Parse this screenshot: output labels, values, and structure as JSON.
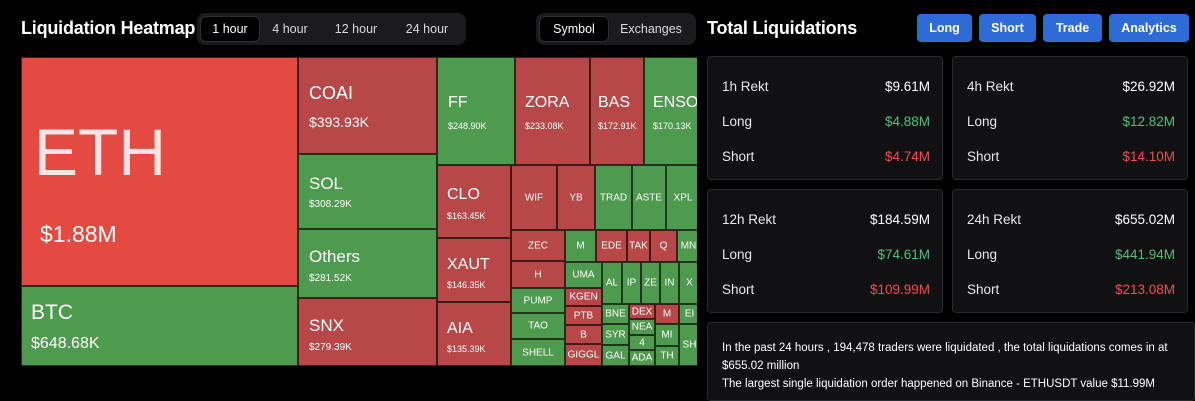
{
  "heatmap": {
    "title": "Liquidation Heatmap",
    "time_tabs": [
      "1 hour",
      "4 hour",
      "12 hour",
      "24 hour"
    ],
    "active_time_tab": "1 hour",
    "view_tabs": [
      "Symbol",
      "Exchanges"
    ],
    "active_view_tab": "Symbol",
    "tiles": [
      {
        "symbol": "ETH",
        "value": "$1.88M",
        "color": "#e24a42"
      },
      {
        "symbol": "BTC",
        "value": "$648.68K",
        "color": "#4e9a4e"
      },
      {
        "symbol": "COAI",
        "value": "$393.93K",
        "color": "#b84848"
      },
      {
        "symbol": "SOL",
        "value": "$308.29K",
        "color": "#4e9a4e"
      },
      {
        "symbol": "Others",
        "value": "$281.52K",
        "color": "#4e9a4e"
      },
      {
        "symbol": "SNX",
        "value": "$279.39K",
        "color": "#b84848"
      },
      {
        "symbol": "FF",
        "value": "$248.90K",
        "color": "#4e9a4e"
      },
      {
        "symbol": "ZORA",
        "value": "$233.08K",
        "color": "#b84848"
      },
      {
        "symbol": "BAS",
        "value": "$172.91K",
        "color": "#b84848"
      },
      {
        "symbol": "ENSO",
        "value": "$170.13K",
        "color": "#4e9a4e"
      },
      {
        "symbol": "CLO",
        "value": "$163.45K",
        "color": "#b84848"
      },
      {
        "symbol": "XAUT",
        "value": "$146.35K",
        "color": "#b84848"
      },
      {
        "symbol": "AIA",
        "value": "$135.39K",
        "color": "#b84848"
      }
    ],
    "small_tiles": [
      "WIF",
      "YB",
      "TRAD",
      "ASTE",
      "XPL",
      "ZEC",
      "M",
      "EDE",
      "TAK",
      "Q",
      "MN",
      "H",
      "UMA",
      "AL",
      "IP",
      "ZE",
      "IN",
      "X",
      "PUMP",
      "KGEN",
      "PTB",
      "BNE",
      "DEX",
      "M",
      "EI",
      "TAO",
      "B",
      "SYR",
      "NEA",
      "4",
      "MI",
      "SHELL",
      "GIGGL",
      "GAL",
      "ADA",
      "TH",
      "SH"
    ]
  },
  "totals": {
    "title": "Total Liquidations",
    "buttons": [
      "Long",
      "Short",
      "Trade",
      "Analytics"
    ],
    "cards": [
      {
        "label": "1h Rekt",
        "total": "$9.61M",
        "long_label": "Long",
        "long": "$4.88M",
        "short_label": "Short",
        "short": "$4.74M"
      },
      {
        "label": "4h Rekt",
        "total": "$26.92M",
        "long_label": "Long",
        "long": "$12.82M",
        "short_label": "Short",
        "short": "$14.10M"
      },
      {
        "label": "12h Rekt",
        "total": "$184.59M",
        "long_label": "Long",
        "long": "$74.61M",
        "short_label": "Short",
        "short": "$109.99M"
      },
      {
        "label": "24h Rekt",
        "total": "$655.02M",
        "long_label": "Long",
        "long": "$441.94M",
        "short_label": "Short",
        "short": "$213.08M"
      }
    ],
    "summary_line1": "In the past 24 hours , 194,478 traders were liquidated , the total liquidations comes in at $655.02 million",
    "summary_line2": "The largest single liquidation order happened on Binance - ETHUSDT value $11.99M"
  },
  "colors": {
    "long": "#4fbf7a",
    "short": "#f04e4e",
    "accent": "#2f6bd6"
  }
}
